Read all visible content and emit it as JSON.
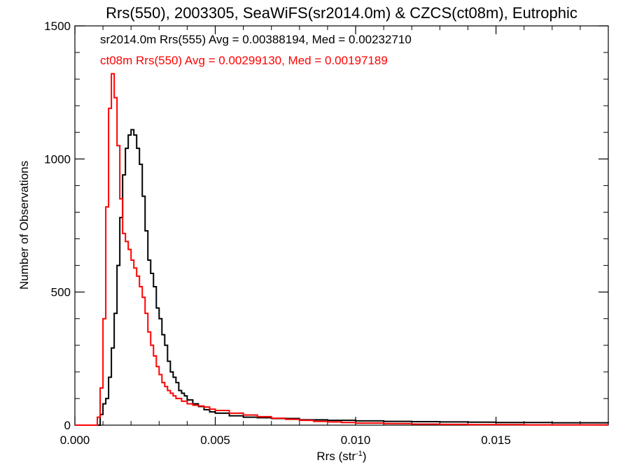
{
  "chart_data": {
    "type": "line",
    "title": "Rrs(550), 2003305, SeaWiFS(sr2014.0m) & CZCS(ct08m), Eutrophic",
    "xlabel": "Rrs (str",
    "xlabel_sup": "-1",
    "xlabel_close": ")",
    "ylabel": "Number of Observations",
    "xlim": [
      0.0,
      0.019
    ],
    "ylim": [
      0,
      1500
    ],
    "xticks": [
      0.0,
      0.005,
      0.01,
      0.015
    ],
    "xtick_labels": [
      "0.000",
      "0.005",
      "0.010",
      "0.015"
    ],
    "yticks": [
      0,
      500,
      1000,
      1500
    ],
    "ytick_labels": [
      "0",
      "500",
      "1000",
      "1500"
    ],
    "grid": false,
    "legend_position": "top-left",
    "series": [
      {
        "name": "sr2014.0m Rrs(555) Avg = 0.00388194, Med = 0.00232710",
        "color": "#000000",
        "points": [
          [
            0.0,
            0
          ],
          [
            0.0008,
            0
          ],
          [
            0.0009,
            40
          ],
          [
            0.001,
            80
          ],
          [
            0.0011,
            100
          ],
          [
            0.0012,
            180
          ],
          [
            0.0013,
            290
          ],
          [
            0.0014,
            420
          ],
          [
            0.0015,
            600
          ],
          [
            0.0016,
            780
          ],
          [
            0.0017,
            940
          ],
          [
            0.0018,
            1040
          ],
          [
            0.0019,
            1090
          ],
          [
            0.002,
            1110
          ],
          [
            0.0021,
            1090
          ],
          [
            0.0022,
            1040
          ],
          [
            0.0023,
            980
          ],
          [
            0.0024,
            860
          ],
          [
            0.0025,
            730
          ],
          [
            0.0026,
            620
          ],
          [
            0.0027,
            570
          ],
          [
            0.0028,
            520
          ],
          [
            0.0029,
            440
          ],
          [
            0.003,
            400
          ],
          [
            0.0031,
            340
          ],
          [
            0.0032,
            300
          ],
          [
            0.0033,
            240
          ],
          [
            0.0034,
            200
          ],
          [
            0.0035,
            180
          ],
          [
            0.0036,
            160
          ],
          [
            0.0037,
            130
          ],
          [
            0.0038,
            120
          ],
          [
            0.0039,
            110
          ],
          [
            0.004,
            95
          ],
          [
            0.0042,
            80
          ],
          [
            0.0044,
            70
          ],
          [
            0.0046,
            58
          ],
          [
            0.0048,
            50
          ],
          [
            0.005,
            45
          ],
          [
            0.0055,
            35
          ],
          [
            0.006,
            30
          ],
          [
            0.0065,
            28
          ],
          [
            0.007,
            25
          ],
          [
            0.008,
            20
          ],
          [
            0.009,
            18
          ],
          [
            0.01,
            16
          ],
          [
            0.011,
            14
          ],
          [
            0.012,
            13
          ],
          [
            0.013,
            12
          ],
          [
            0.014,
            11
          ],
          [
            0.015,
            10
          ],
          [
            0.016,
            10
          ],
          [
            0.017,
            9
          ],
          [
            0.018,
            9
          ],
          [
            0.019,
            8
          ]
        ]
      },
      {
        "name": "ct08m Rrs(550) Avg = 0.00299130, Med = 0.00197189",
        "color": "#ff0000",
        "points": [
          [
            0.0,
            0
          ],
          [
            0.0007,
            0
          ],
          [
            0.0008,
            30
          ],
          [
            0.0009,
            140
          ],
          [
            0.001,
            400
          ],
          [
            0.0011,
            820
          ],
          [
            0.0012,
            1190
          ],
          [
            0.0013,
            1320
          ],
          [
            0.0014,
            1230
          ],
          [
            0.0015,
            1050
          ],
          [
            0.0016,
            850
          ],
          [
            0.0017,
            720
          ],
          [
            0.0018,
            690
          ],
          [
            0.0019,
            660
          ],
          [
            0.002,
            620
          ],
          [
            0.0021,
            590
          ],
          [
            0.0022,
            560
          ],
          [
            0.0023,
            520
          ],
          [
            0.0024,
            480
          ],
          [
            0.0025,
            420
          ],
          [
            0.0026,
            350
          ],
          [
            0.0027,
            300
          ],
          [
            0.0028,
            260
          ],
          [
            0.0029,
            220
          ],
          [
            0.003,
            190
          ],
          [
            0.0031,
            160
          ],
          [
            0.0032,
            145
          ],
          [
            0.0033,
            130
          ],
          [
            0.0034,
            120
          ],
          [
            0.0035,
            110
          ],
          [
            0.0036,
            100
          ],
          [
            0.0038,
            90
          ],
          [
            0.004,
            80
          ],
          [
            0.0042,
            75
          ],
          [
            0.0044,
            72
          ],
          [
            0.0046,
            68
          ],
          [
            0.0048,
            60
          ],
          [
            0.005,
            55
          ],
          [
            0.0055,
            45
          ],
          [
            0.006,
            38
          ],
          [
            0.0065,
            32
          ],
          [
            0.007,
            26
          ],
          [
            0.0075,
            22
          ],
          [
            0.008,
            18
          ],
          [
            0.0085,
            14
          ],
          [
            0.009,
            12
          ],
          [
            0.0095,
            10
          ],
          [
            0.01,
            8
          ],
          [
            0.011,
            6
          ],
          [
            0.012,
            4
          ],
          [
            0.013,
            3
          ],
          [
            0.014,
            2
          ],
          [
            0.015,
            2
          ],
          [
            0.016,
            1
          ],
          [
            0.017,
            1
          ],
          [
            0.018,
            1
          ],
          [
            0.019,
            1
          ]
        ]
      }
    ]
  }
}
